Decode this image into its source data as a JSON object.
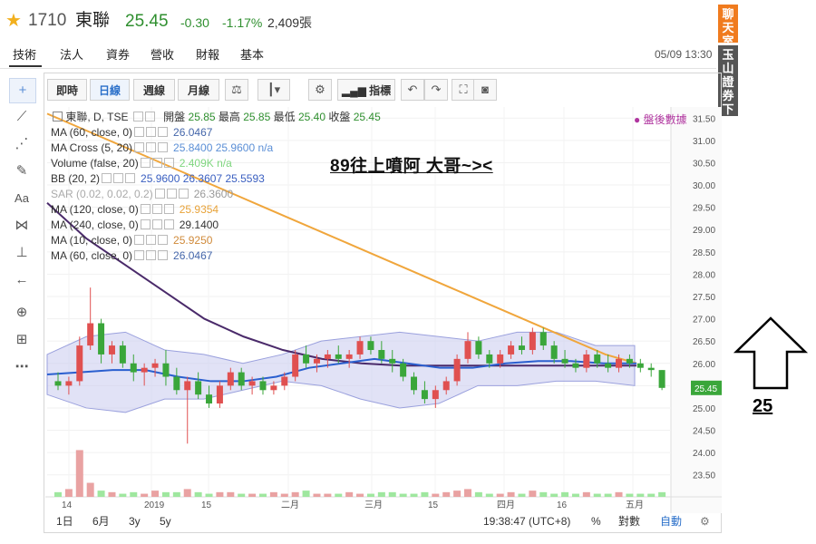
{
  "header": {
    "code": "1710",
    "name": "東聯",
    "price": "25.45",
    "change": "-0.30",
    "change_pct": "-1.17%",
    "volume": "2,409張",
    "accent_color": "#2f8f2f"
  },
  "nav": {
    "tabs": [
      "技術",
      "法人",
      "資券",
      "營收",
      "財報",
      "基本"
    ],
    "active": 0,
    "datetime": "05/09 13:30"
  },
  "side_tabs": [
    "聊天室",
    "玉山證券下單"
  ],
  "toolbar": {
    "periods": [
      "即時",
      "日線",
      "週線",
      "月線"
    ],
    "active_period": 1,
    "indicators_label": "指標"
  },
  "legend": {
    "main": {
      "label": "東聯, D, TSE",
      "open_label": "開盤",
      "open": "25.85",
      "high_label": "最高",
      "high": "25.85",
      "low_label": "最低",
      "low": "25.40",
      "close_label": "收盤",
      "close": "25.45"
    },
    "items": [
      {
        "label": "MA (60, close, 0)",
        "value": "26.0467",
        "color": "#4466aa"
      },
      {
        "label": "MA Cross (5, 20)",
        "value": "25.8400 25.9600 n/a",
        "color": "#5b8fd6"
      },
      {
        "label": "Volume (false, 20)",
        "value": "2.409K n/a",
        "color": "#7fd67f"
      },
      {
        "label": "BB (20, 2)",
        "value": "25.9600 26.3607 25.5593",
        "color": "#3a5fc0"
      },
      {
        "label": "SAR (0.02, 0.02, 0.2)",
        "value": "26.3600",
        "color": "#999999"
      },
      {
        "label": "MA (120, close, 0)",
        "value": "25.9354",
        "color": "#e8a33a"
      },
      {
        "label": "MA (240, close, 0)",
        "value": "29.1400",
        "color": "#333333"
      },
      {
        "label": "MA (10, close, 0)",
        "value": "25.9250",
        "color": "#d08a3a"
      },
      {
        "label": "MA (60, close, 0)",
        "value": "26.0467",
        "color": "#4466aa"
      }
    ]
  },
  "overlay_text": "89往上噴阿 大哥~><",
  "after_hours": "盤後數據",
  "chart_data": {
    "type": "candlestick",
    "y_ticks": [
      "31.50",
      "31.00",
      "30.50",
      "30.00",
      "29.50",
      "29.00",
      "28.50",
      "28.00",
      "27.50",
      "27.00",
      "26.50",
      "26.00",
      "25.50",
      "25.00",
      "24.50",
      "24.00",
      "23.50"
    ],
    "ylim": [
      23.25,
      31.75
    ],
    "x_ticks": [
      "14",
      "2019",
      "15",
      "二月",
      "三月",
      "15",
      "四月",
      "16",
      "五月"
    ],
    "last_price_label": "25.45",
    "candles_ohlc": [
      [
        25.6,
        25.8,
        25.4,
        25.5
      ],
      [
        25.5,
        25.7,
        25.3,
        25.6
      ],
      [
        25.6,
        26.6,
        25.5,
        26.4
      ],
      [
        26.4,
        27.7,
        26.3,
        26.9
      ],
      [
        26.9,
        27.0,
        26.0,
        26.2
      ],
      [
        26.2,
        26.5,
        26.0,
        26.4
      ],
      [
        26.4,
        26.5,
        25.9,
        26.0
      ],
      [
        26.0,
        26.2,
        25.6,
        25.8
      ],
      [
        25.8,
        26.0,
        25.5,
        25.9
      ],
      [
        25.9,
        26.1,
        25.7,
        26.0
      ],
      [
        26.0,
        26.3,
        25.5,
        25.7
      ],
      [
        25.7,
        25.9,
        25.3,
        25.4
      ],
      [
        25.4,
        25.7,
        24.2,
        25.6
      ],
      [
        25.6,
        25.8,
        25.2,
        25.3
      ],
      [
        25.3,
        25.5,
        25.0,
        25.1
      ],
      [
        25.1,
        25.6,
        25.0,
        25.5
      ],
      [
        25.5,
        25.9,
        25.4,
        25.8
      ],
      [
        25.8,
        25.9,
        25.4,
        25.5
      ],
      [
        25.5,
        25.7,
        25.3,
        25.6
      ],
      [
        25.6,
        25.7,
        25.3,
        25.4
      ],
      [
        25.4,
        25.6,
        25.3,
        25.5
      ],
      [
        25.5,
        25.8,
        25.4,
        25.7
      ],
      [
        25.7,
        26.3,
        25.6,
        26.2
      ],
      [
        26.2,
        26.4,
        25.9,
        26.0
      ],
      [
        26.0,
        26.2,
        25.8,
        26.1
      ],
      [
        26.1,
        26.3,
        25.9,
        26.2
      ],
      [
        26.2,
        26.4,
        26.0,
        26.1
      ],
      [
        26.1,
        26.3,
        25.9,
        26.2
      ],
      [
        26.2,
        26.6,
        26.1,
        26.5
      ],
      [
        26.5,
        26.6,
        26.2,
        26.3
      ],
      [
        26.3,
        26.5,
        26.0,
        26.1
      ],
      [
        26.1,
        26.3,
        25.8,
        26.0
      ],
      [
        26.0,
        26.1,
        25.6,
        25.7
      ],
      [
        25.7,
        25.8,
        25.3,
        25.4
      ],
      [
        25.4,
        25.6,
        25.1,
        25.2
      ],
      [
        25.2,
        25.5,
        25.0,
        25.4
      ],
      [
        25.4,
        25.7,
        25.3,
        25.6
      ],
      [
        25.6,
        26.2,
        25.5,
        26.1
      ],
      [
        26.1,
        26.7,
        26.0,
        26.5
      ],
      [
        26.5,
        26.6,
        26.1,
        26.2
      ],
      [
        26.2,
        26.3,
        25.9,
        26.0
      ],
      [
        26.0,
        26.3,
        25.9,
        26.2
      ],
      [
        26.2,
        26.5,
        26.1,
        26.4
      ],
      [
        26.4,
        26.6,
        26.2,
        26.3
      ],
      [
        26.3,
        26.8,
        26.2,
        26.7
      ],
      [
        26.7,
        26.8,
        26.3,
        26.4
      ],
      [
        26.4,
        26.5,
        26.0,
        26.1
      ],
      [
        26.1,
        26.3,
        25.9,
        26.0
      ],
      [
        26.0,
        26.1,
        25.8,
        25.9
      ],
      [
        25.9,
        26.3,
        25.8,
        26.2
      ],
      [
        26.2,
        26.3,
        25.9,
        26.0
      ],
      [
        26.0,
        26.2,
        25.8,
        25.9
      ],
      [
        25.9,
        26.2,
        25.8,
        26.1
      ],
      [
        26.1,
        26.2,
        25.9,
        26.0
      ],
      [
        26.0,
        26.1,
        25.8,
        25.9
      ],
      [
        25.9,
        26.0,
        25.7,
        25.85
      ],
      [
        25.85,
        25.85,
        25.4,
        25.45
      ]
    ],
    "volumes": [
      3,
      5,
      30,
      9,
      4,
      3,
      2,
      3,
      2,
      4,
      3,
      3,
      5,
      3,
      2,
      3,
      3,
      2,
      2,
      2,
      3,
      2,
      3,
      4,
      2,
      2,
      2,
      3,
      2,
      2,
      3,
      3,
      2,
      2,
      3,
      2,
      3,
      4,
      5,
      3,
      2,
      2,
      3,
      2,
      4,
      3,
      2,
      3,
      2,
      3,
      2,
      2,
      3,
      2,
      2,
      2,
      3
    ],
    "vol_ylim": [
      0,
      32
    ],
    "ma120_orange": [
      31.6,
      31.3,
      31.0,
      30.7,
      30.4,
      30.1,
      29.8,
      29.5,
      29.2,
      28.9,
      28.6,
      28.3,
      28.0,
      27.7,
      27.4,
      27.1,
      26.8,
      26.5,
      26.2,
      26.0
    ],
    "ma240_dark": [
      29.6,
      28.8,
      28.2,
      27.6,
      27.0,
      26.6,
      26.3,
      26.1,
      26.0,
      25.95,
      25.95,
      25.95,
      25.95,
      25.95,
      25.95,
      25.95
    ],
    "ma_blue": [
      25.75,
      25.8,
      25.85,
      25.85,
      25.7,
      25.6,
      25.6,
      25.7,
      25.9,
      26.0,
      26.1,
      26.0,
      25.9,
      25.9,
      26.0,
      26.05,
      26.05,
      26.0,
      26.0
    ],
    "bb_upper": [
      26.2,
      26.6,
      26.7,
      26.3,
      26.2,
      26.0,
      26.2,
      26.5,
      26.6,
      26.7,
      26.6,
      26.5,
      26.7,
      26.7,
      26.4,
      26.4
    ],
    "bb_lower": [
      25.3,
      25.0,
      24.9,
      25.2,
      25.2,
      25.4,
      25.6,
      25.5,
      25.2,
      25.0,
      25.1,
      25.5,
      25.5,
      25.6,
      25.6,
      25.5
    ],
    "colors": {
      "up": "#e05050",
      "down": "#3aa63a",
      "bb_fill": "#c9cbee",
      "orange": "#f0a63c",
      "dark": "#4a2a6a",
      "blue": "#2a5fcf"
    }
  },
  "bottom": {
    "ranges": [
      "1日",
      "6月",
      "3y",
      "5y"
    ],
    "time": "19:38:47 (UTC+8)",
    "percent": "%",
    "log": "對數",
    "auto": "自動"
  },
  "annotation": {
    "label": "25"
  }
}
